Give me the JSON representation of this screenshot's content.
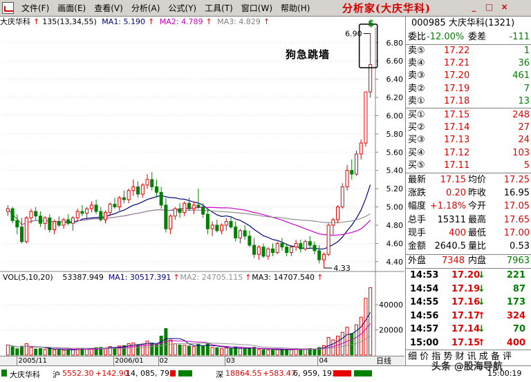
{
  "menubar": {
    "items": [
      "文件(F)",
      "画面(E)",
      "查看(V)",
      "分析(A)",
      "公式(Y)",
      "工具(T)",
      "窗口(W)",
      "帮助(H)"
    ],
    "brand": "分析家(大庆华科)",
    "win_buttons": [
      "_",
      "□",
      "×"
    ]
  },
  "chart_header": {
    "stock_name": "大庆华科",
    "bar_count": "135(13,34,55)",
    "ma1": "MA1: 5.190",
    "ma2": "MA2: 4.789",
    "ma3": "MA3: 4.829"
  },
  "volume_header": {
    "label": "VOL(5,10,20)",
    "vol": "53387.949",
    "ma1": "MA1: 30517.391",
    "ma2": "MA2: 24705.115",
    "ma3": "MA3: 14707.540"
  },
  "annotation": "狗急跳墙",
  "chart_data": {
    "type": "candlestick",
    "price_axis": {
      "ticks": [
        "6.80",
        "6.60",
        "6.40",
        "6.20",
        "6.00",
        "5.80",
        "5.60",
        "5.40",
        "5.20",
        "5.00",
        "4.80",
        "4.60",
        "4.40"
      ],
      "ylim": [
        4.3,
        6.95
      ]
    },
    "volume_axis": {
      "ticks": [
        "40000",
        "20000"
      ],
      "ylim": [
        0,
        58000
      ]
    },
    "price_labels": {
      "high": "6.90",
      "low": "4.33"
    },
    "x_axis_labels": [
      "2005/11",
      "2006/01",
      "02",
      "03",
      "04"
    ],
    "period_label": "日线",
    "candles": [
      [
        4.95,
        5.02,
        4.9,
        4.98,
        8000
      ],
      [
        4.98,
        5.0,
        4.82,
        4.85,
        6500
      ],
      [
        4.85,
        4.92,
        4.7,
        4.78,
        5000
      ],
      [
        4.78,
        4.88,
        4.6,
        4.62,
        7000
      ],
      [
        4.62,
        4.9,
        4.6,
        4.88,
        9000
      ],
      [
        4.88,
        4.98,
        4.82,
        4.95,
        6000
      ],
      [
        4.95,
        5.0,
        4.86,
        4.9,
        4800
      ],
      [
        4.9,
        4.95,
        4.78,
        4.82,
        5200
      ],
      [
        4.82,
        4.9,
        4.75,
        4.88,
        4500
      ],
      [
        4.88,
        4.92,
        4.72,
        4.75,
        5600
      ],
      [
        4.75,
        4.86,
        4.7,
        4.84,
        4200
      ],
      [
        4.84,
        4.9,
        4.78,
        4.8,
        4000
      ],
      [
        4.8,
        4.88,
        4.76,
        4.86,
        3800
      ],
      [
        4.86,
        4.92,
        4.8,
        4.82,
        4100
      ],
      [
        4.82,
        4.9,
        4.74,
        4.88,
        4600
      ],
      [
        4.88,
        4.98,
        4.84,
        4.95,
        5300
      ],
      [
        4.95,
        5.02,
        4.9,
        4.93,
        5000
      ],
      [
        4.93,
        5.0,
        4.86,
        4.98,
        4700
      ],
      [
        4.98,
        5.06,
        4.94,
        5.02,
        5200
      ],
      [
        5.02,
        5.08,
        4.92,
        4.95,
        5900
      ],
      [
        4.95,
        5.0,
        4.84,
        4.86,
        6100
      ],
      [
        4.86,
        4.96,
        4.82,
        4.94,
        5400
      ],
      [
        4.94,
        5.05,
        4.9,
        5.03,
        6800
      ],
      [
        5.03,
        5.1,
        4.98,
        5.0,
        6000
      ],
      [
        5.0,
        5.12,
        4.96,
        5.1,
        7200
      ],
      [
        5.1,
        5.18,
        5.04,
        5.08,
        7500
      ],
      [
        5.08,
        5.2,
        5.04,
        5.18,
        9000
      ],
      [
        5.18,
        5.3,
        5.12,
        5.22,
        9600
      ],
      [
        5.22,
        5.28,
        5.1,
        5.14,
        8000
      ],
      [
        5.14,
        5.26,
        5.1,
        5.24,
        8800
      ],
      [
        5.24,
        5.36,
        5.2,
        5.3,
        11000
      ],
      [
        5.3,
        5.38,
        5.18,
        5.22,
        9500
      ],
      [
        5.22,
        5.3,
        5.1,
        5.16,
        8200
      ],
      [
        5.16,
        5.22,
        4.98,
        5.02,
        15000
      ],
      [
        5.02,
        5.1,
        4.72,
        4.76,
        21000
      ],
      [
        4.76,
        4.92,
        4.7,
        4.9,
        12000
      ],
      [
        4.9,
        5.0,
        4.86,
        4.98,
        9000
      ],
      [
        4.98,
        5.04,
        4.88,
        4.94,
        8000
      ],
      [
        4.94,
        5.06,
        4.9,
        5.04,
        7800
      ],
      [
        5.04,
        5.1,
        4.96,
        4.98,
        7200
      ],
      [
        4.98,
        5.06,
        4.92,
        5.02,
        6800
      ],
      [
        5.02,
        5.2,
        4.98,
        5.0,
        8500
      ],
      [
        5.0,
        5.04,
        4.88,
        4.92,
        7000
      ],
      [
        4.92,
        4.98,
        4.7,
        4.76,
        9000
      ],
      [
        4.76,
        4.84,
        4.68,
        4.8,
        6000
      ],
      [
        4.8,
        4.86,
        4.72,
        4.74,
        5800
      ],
      [
        4.74,
        4.82,
        4.7,
        4.8,
        5000
      ],
      [
        4.8,
        4.88,
        4.74,
        4.84,
        5600
      ],
      [
        4.84,
        4.9,
        4.76,
        4.78,
        5000
      ],
      [
        4.78,
        4.84,
        4.62,
        4.66,
        6500
      ],
      [
        4.66,
        4.76,
        4.6,
        4.74,
        5200
      ],
      [
        4.74,
        4.8,
        4.64,
        4.68,
        4800
      ],
      [
        4.68,
        4.74,
        4.56,
        4.58,
        5500
      ],
      [
        4.58,
        4.66,
        4.44,
        4.48,
        6200
      ],
      [
        4.48,
        4.58,
        4.42,
        4.56,
        4500
      ],
      [
        4.56,
        4.6,
        4.44,
        4.46,
        4300
      ],
      [
        4.46,
        4.56,
        4.42,
        4.54,
        4100
      ],
      [
        4.54,
        4.6,
        4.46,
        4.5,
        4000
      ],
      [
        4.5,
        4.62,
        4.48,
        4.6,
        4600
      ],
      [
        4.6,
        4.66,
        4.52,
        4.56,
        4800
      ],
      [
        4.56,
        4.6,
        4.46,
        4.5,
        4400
      ],
      [
        4.5,
        4.58,
        4.46,
        4.56,
        4200
      ],
      [
        4.56,
        4.64,
        4.52,
        4.6,
        4700
      ],
      [
        4.6,
        4.64,
        4.5,
        4.54,
        4500
      ],
      [
        4.54,
        4.64,
        4.52,
        4.62,
        5000
      ],
      [
        4.62,
        4.68,
        4.54,
        4.58,
        5200
      ],
      [
        4.58,
        4.62,
        4.48,
        4.52,
        4600
      ],
      [
        4.52,
        4.58,
        4.38,
        4.42,
        6000
      ],
      [
        4.42,
        4.5,
        4.33,
        4.48,
        7500
      ],
      [
        4.48,
        4.82,
        4.46,
        4.8,
        14000
      ],
      [
        4.8,
        4.88,
        4.7,
        4.86,
        12000
      ],
      [
        4.86,
        5.02,
        4.82,
        5.0,
        15000
      ],
      [
        5.0,
        5.26,
        4.98,
        5.22,
        18000
      ],
      [
        5.22,
        5.46,
        5.18,
        5.4,
        22000
      ],
      [
        5.4,
        5.52,
        5.3,
        5.36,
        17000
      ],
      [
        5.36,
        5.62,
        5.34,
        5.58,
        24000
      ],
      [
        5.58,
        5.74,
        5.52,
        5.7,
        30000
      ],
      [
        5.7,
        6.26,
        5.66,
        6.26,
        45000
      ],
      [
        6.26,
        6.9,
        6.2,
        6.56,
        53388
      ]
    ],
    "ma_lines": [
      "MA1",
      "MA2",
      "MA3"
    ]
  },
  "quote": {
    "code": "000985",
    "name": "大庆华科(1321)",
    "weibi_label": "委比",
    "weibi": "-12.00%",
    "weicha_label": "委差",
    "weicha": "-111",
    "sell": [
      {
        "label": "卖⑤",
        "price": "17.22",
        "vol": "1"
      },
      {
        "label": "卖④",
        "price": "17.21",
        "vol": "36"
      },
      {
        "label": "卖③",
        "price": "17.20",
        "vol": "461"
      },
      {
        "label": "卖②",
        "price": "17.19",
        "vol": "7"
      },
      {
        "label": "卖①",
        "price": "17.18",
        "vol": "13"
      }
    ],
    "buy": [
      {
        "label": "买①",
        "price": "17.15",
        "vol": "248"
      },
      {
        "label": "买②",
        "price": "17.14",
        "vol": "27"
      },
      {
        "label": "买③",
        "price": "17.13",
        "vol": "24"
      },
      {
        "label": "买④",
        "price": "17.12",
        "vol": "103"
      },
      {
        "label": "买⑤",
        "price": "17.11",
        "vol": "5"
      }
    ],
    "stats": [
      {
        "l1": "最新",
        "v1": "17.15",
        "l2": "均价",
        "v2": "17.25"
      },
      {
        "l1": "涨跌",
        "v1": "0.20",
        "l2": "昨收",
        "v2": "16.95"
      },
      {
        "l1": "幅度",
        "v1": "+1.18%",
        "l2": "今开",
        "v2": "17.05"
      },
      {
        "l1": "总手",
        "v1": "15311",
        "l2": "最高",
        "v2": "17.65"
      },
      {
        "l1": "现手",
        "v1": "400",
        "l2": "最低",
        "v2": "17.00"
      },
      {
        "l1": "金额",
        "v1": "2640.5",
        "l2": "量比",
        "v2": "0.53"
      }
    ],
    "outer_label": "外盘",
    "outer": "7348",
    "inner_label": "内盘",
    "inner": "7963",
    "ticks": [
      {
        "time": "14:53",
        "price": "17.20",
        "dir": "down",
        "vol": "221"
      },
      {
        "time": "14:54",
        "price": "17.19",
        "dir": "down",
        "vol": "87"
      },
      {
        "time": "14:55",
        "price": "17.16",
        "dir": "down",
        "vol": "173"
      },
      {
        "time": "14:56",
        "price": "17.17",
        "dir": "up",
        "vol": "324"
      },
      {
        "time": "14:57",
        "price": "17.14",
        "dir": "down",
        "vol": "70"
      },
      {
        "time": "15:00",
        "price": "17.15",
        "dir": "up",
        "vol": "400"
      }
    ],
    "bottom_tabs": "细 价 指 势 财 讯 成 备 评"
  },
  "status": {
    "left": "大庆华科",
    "sh_label": "沪",
    "sh": "5552.30",
    "sh_chg": "+142.90",
    "sh_vol": "14, 085, 793",
    "sz_label": "深",
    "sz": "18864.55",
    "sz_chg": "+583.47",
    "sz_vol": "6, 959, 191",
    "time": "15:00:19",
    "watermark": "头条 @股海导航"
  }
}
